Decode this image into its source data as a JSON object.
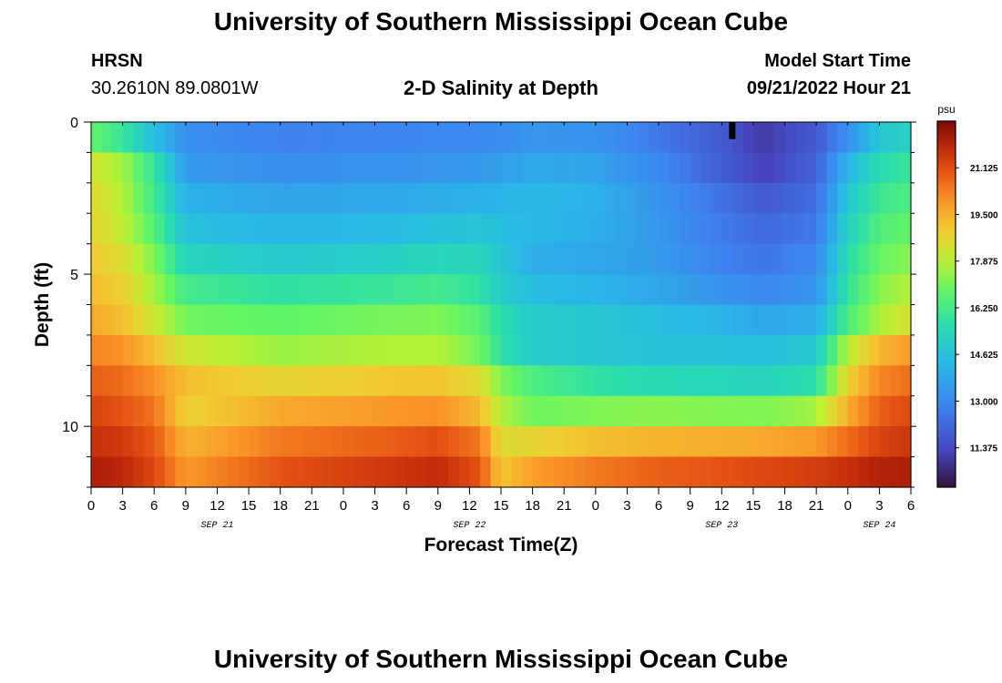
{
  "header": {
    "title": "University of Southern Mississippi Ocean Cube",
    "station": "HRSN",
    "coords": "30.2610N  89.0801W",
    "subtitle": "2-D Salinity at Depth",
    "model_start_label": "Model Start Time",
    "model_start_value": "09/21/2022 Hour 21"
  },
  "footer": {
    "title": "University of Southern Mississippi Ocean Cube"
  },
  "chart_data": {
    "type": "heatmap",
    "title": "2-D Salinity at Depth",
    "xlabel": "Forecast Time(Z)",
    "ylabel": "Depth (ft)",
    "x_tick_labels": [
      "0",
      "3",
      "6",
      "9",
      "12",
      "15",
      "18",
      "21",
      "0",
      "3",
      "6",
      "9",
      "12",
      "15",
      "18",
      "21",
      "0",
      "3",
      "6",
      "9",
      "12",
      "15",
      "18",
      "21",
      "0",
      "3",
      "6"
    ],
    "x_hours": [
      0,
      3,
      6,
      9,
      12,
      15,
      18,
      21,
      24,
      27,
      30,
      33,
      36,
      39,
      42,
      45,
      48,
      51,
      54,
      57,
      60,
      63,
      66,
      69,
      72,
      75,
      78
    ],
    "date_labels": [
      {
        "label": "SEP 21",
        "hour": 12
      },
      {
        "label": "SEP 22",
        "hour": 36
      },
      {
        "label": "SEP 23",
        "hour": 60
      },
      {
        "label": "SEP 24",
        "hour": 75
      }
    ],
    "y_tick_labels": [
      "0",
      "5",
      "10"
    ],
    "y_ticks": [
      0,
      5,
      10
    ],
    "ylim": [
      0,
      12
    ],
    "xlim": [
      0,
      78
    ],
    "colorbar": {
      "unit": "psu",
      "range": [
        10,
        22.75
      ],
      "ticks": [
        "21.125",
        "19.500",
        "17.875",
        "16.250",
        "14.625",
        "13.000",
        "11.375"
      ],
      "tick_values": [
        21.125,
        19.5,
        17.875,
        16.25,
        14.625,
        13.0,
        11.375
      ]
    },
    "depth_layers": [
      0.5,
      1.5,
      2.5,
      3.5,
      4.5,
      5.5,
      6.5,
      7.5,
      8.5,
      9.5,
      10.5,
      11.5
    ],
    "control_times": [
      0,
      3,
      6,
      9,
      18,
      28,
      33,
      37,
      39,
      42,
      48,
      54,
      60,
      64,
      69,
      72,
      75,
      78
    ],
    "salinity_grid": [
      [
        16.8,
        16.0,
        14.5,
        13.2,
        12.8,
        12.9,
        13.0,
        13.0,
        13.1,
        13.4,
        13.3,
        12.6,
        11.8,
        11.0,
        11.8,
        13.2,
        14.8,
        15.2
      ],
      [
        18.3,
        17.6,
        15.9,
        13.5,
        13.2,
        13.3,
        13.4,
        13.5,
        13.6,
        13.8,
        13.7,
        13.0,
        11.9,
        11.2,
        12.0,
        14.2,
        15.6,
        16.0
      ],
      [
        18.6,
        17.8,
        16.2,
        14.1,
        13.7,
        13.8,
        14.0,
        14.1,
        14.2,
        14.3,
        14.1,
        13.3,
        12.4,
        11.8,
        12.3,
        14.8,
        16.1,
        16.4
      ],
      [
        18.7,
        18.0,
        16.6,
        14.6,
        14.2,
        14.4,
        14.6,
        14.7,
        14.5,
        14.3,
        14.0,
        13.4,
        12.6,
        12.2,
        12.6,
        15.2,
        16.5,
        16.8
      ],
      [
        19.0,
        18.5,
        17.2,
        15.3,
        14.9,
        15.1,
        15.4,
        15.3,
        14.8,
        14.0,
        13.8,
        13.5,
        12.8,
        12.5,
        13.0,
        15.6,
        16.9,
        17.3
      ],
      [
        19.2,
        18.9,
        17.6,
        16.2,
        15.8,
        16.0,
        16.2,
        15.8,
        15.0,
        14.5,
        14.2,
        13.8,
        13.3,
        13.0,
        13.3,
        15.9,
        17.3,
        17.8
      ],
      [
        19.6,
        19.2,
        18.2,
        17.0,
        16.8,
        17.1,
        17.2,
        16.6,
        15.6,
        15.0,
        14.8,
        14.5,
        14.2,
        13.8,
        14.0,
        16.4,
        17.7,
        18.4
      ],
      [
        20.2,
        20.0,
        19.2,
        18.2,
        17.5,
        17.8,
        17.8,
        17.0,
        15.8,
        15.0,
        14.8,
        14.6,
        14.6,
        14.5,
        14.9,
        17.8,
        19.4,
        19.8
      ],
      [
        20.8,
        20.6,
        20.0,
        19.2,
        18.7,
        19.0,
        19.1,
        18.5,
        17.2,
        16.4,
        15.8,
        15.5,
        15.4,
        15.3,
        15.7,
        18.8,
        20.2,
        20.6
      ],
      [
        21.3,
        21.0,
        20.5,
        18.8,
        19.6,
        19.9,
        20.0,
        19.3,
        17.8,
        17.0,
        17.2,
        17.3,
        17.2,
        17.2,
        17.6,
        19.5,
        20.8,
        21.2
      ],
      [
        21.7,
        21.5,
        20.9,
        19.4,
        20.4,
        20.8,
        21.1,
        20.4,
        18.5,
        18.7,
        19.2,
        19.4,
        19.5,
        19.6,
        19.9,
        20.6,
        21.3,
        21.6
      ],
      [
        22.1,
        21.9,
        21.2,
        19.9,
        21.0,
        21.5,
        21.8,
        21.0,
        19.0,
        19.8,
        20.4,
        20.8,
        21.0,
        21.2,
        21.4,
        21.7,
        22.0,
        22.1
      ]
    ],
    "annotation": {
      "type": "marker",
      "hour": 61,
      "depth": 0.5,
      "color": "#000000"
    }
  }
}
